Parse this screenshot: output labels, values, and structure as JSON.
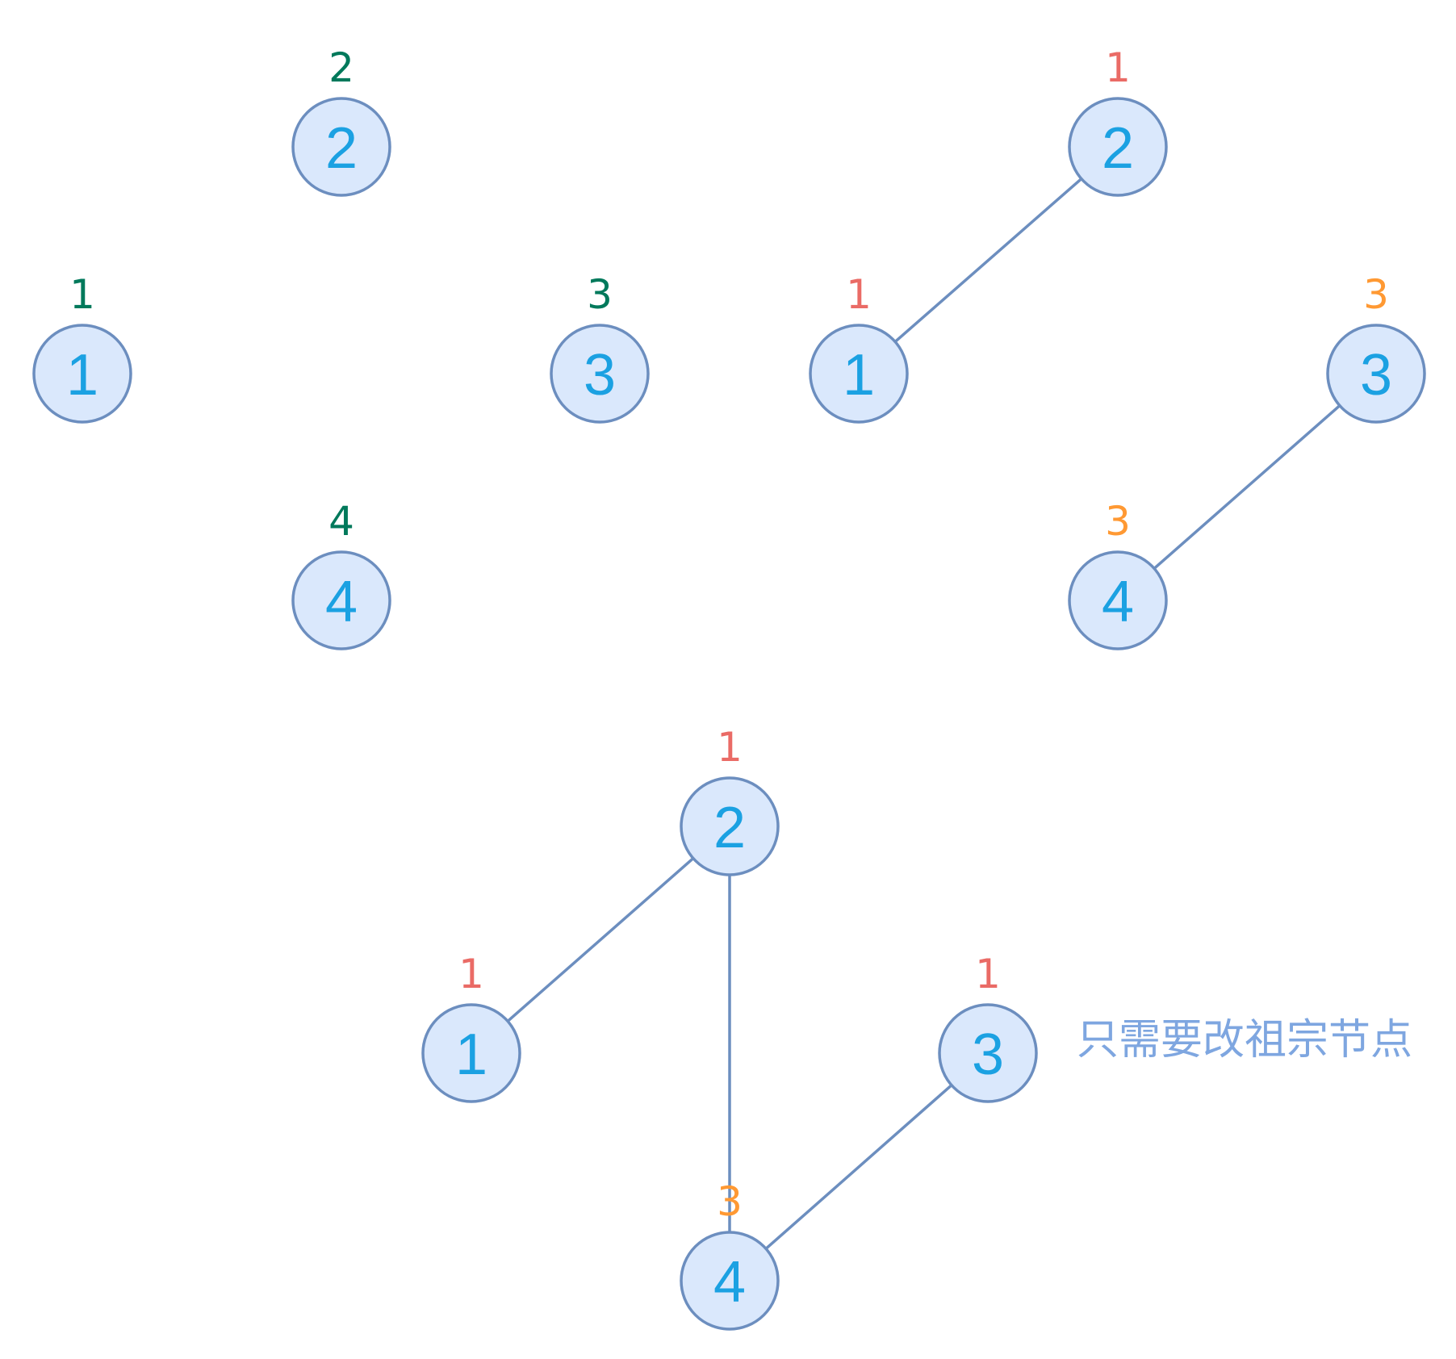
{
  "colors": {
    "node_text": "#1ba1e2",
    "node_fill": "#dae8fc",
    "node_stroke": "#6c8ebf",
    "parent_initial": "#00795b",
    "parent_red": "#ea6b66",
    "parent_orange": "#ff9933",
    "note_text": "#7ea6e0"
  },
  "panels": [
    {
      "id": "initial",
      "nodes": [
        {
          "id": "2",
          "label": "2",
          "parent": "2",
          "parent_color": "parent_initial"
        },
        {
          "id": "1",
          "label": "1",
          "parent": "1",
          "parent_color": "parent_initial"
        },
        {
          "id": "3",
          "label": "3",
          "parent": "3",
          "parent_color": "parent_initial"
        },
        {
          "id": "4",
          "label": "4",
          "parent": "4",
          "parent_color": "parent_initial"
        }
      ],
      "edges": []
    },
    {
      "id": "two-sets",
      "nodes": [
        {
          "id": "2",
          "label": "2",
          "parent": "1",
          "parent_color": "parent_red"
        },
        {
          "id": "1",
          "label": "1",
          "parent": "1",
          "parent_color": "parent_red"
        },
        {
          "id": "3",
          "label": "3",
          "parent": "3",
          "parent_color": "parent_orange"
        },
        {
          "id": "4",
          "label": "4",
          "parent": "3",
          "parent_color": "parent_orange"
        }
      ],
      "edges": [
        [
          "2",
          "1"
        ],
        [
          "3",
          "4"
        ]
      ]
    },
    {
      "id": "merged",
      "nodes": [
        {
          "id": "2",
          "label": "2",
          "parent": "1",
          "parent_color": "parent_red"
        },
        {
          "id": "1",
          "label": "1",
          "parent": "1",
          "parent_color": "parent_red"
        },
        {
          "id": "3",
          "label": "3",
          "parent": "1",
          "parent_color": "parent_red"
        },
        {
          "id": "4",
          "label": "4",
          "parent": "3",
          "parent_color": "parent_orange"
        }
      ],
      "edges": [
        [
          "2",
          "1"
        ],
        [
          "2",
          "4"
        ],
        [
          "3",
          "4"
        ]
      ]
    }
  ],
  "note": "只需要改祖宗节点"
}
